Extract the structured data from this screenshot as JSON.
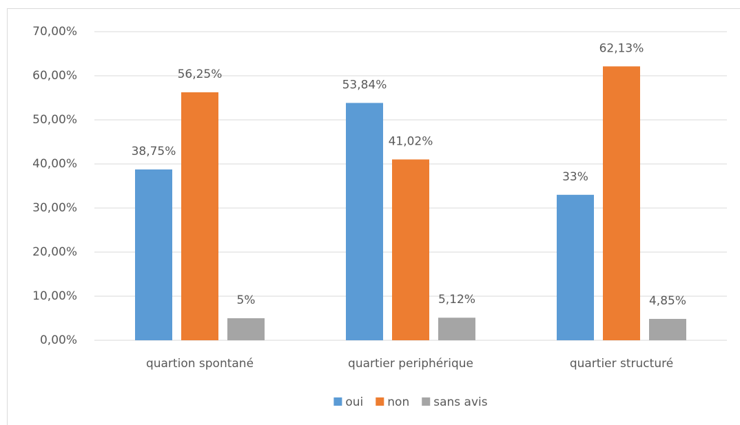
{
  "chart_data": {
    "type": "bar",
    "categories": [
      "quartion spontané",
      "quartier periphérique",
      "quartier structuré"
    ],
    "series": [
      {
        "name": "oui",
        "color": "#5b9bd5",
        "values": [
          38.75,
          53.84,
          33
        ],
        "value_labels": [
          "38,75%",
          "53,84%",
          "33%"
        ]
      },
      {
        "name": "non",
        "color": "#ed7d31",
        "values": [
          56.25,
          41.02,
          62.13
        ],
        "value_labels": [
          "56,25%",
          "41,02%",
          "62,13%"
        ]
      },
      {
        "name": "sans avis",
        "color": "#a5a5a5",
        "values": [
          5,
          5.12,
          4.85
        ],
        "value_labels": [
          "5%",
          "5,12%",
          "4,85%"
        ]
      }
    ],
    "ylim": [
      0,
      70
    ],
    "yticks": [
      {
        "value": 0,
        "label": "0,00%"
      },
      {
        "value": 10,
        "label": "10,00%"
      },
      {
        "value": 20,
        "label": "20,00%"
      },
      {
        "value": 30,
        "label": "30,00%"
      },
      {
        "value": 40,
        "label": "40,00%"
      },
      {
        "value": 50,
        "label": "50,00%"
      },
      {
        "value": 60,
        "label": "60,00%"
      },
      {
        "value": 70,
        "label": "70,00%"
      }
    ],
    "grid": true,
    "legend": "bottom"
  }
}
